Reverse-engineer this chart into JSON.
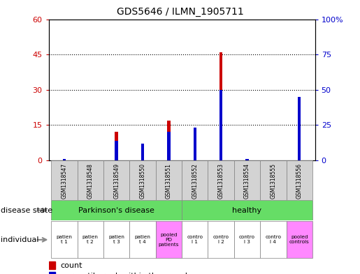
{
  "title": "GDS5646 / ILMN_1905711",
  "samples": [
    "GSM1318547",
    "GSM1318548",
    "GSM1318549",
    "GSM1318550",
    "GSM1318551",
    "GSM1318552",
    "GSM1318553",
    "GSM1318554",
    "GSM1318555",
    "GSM1318556"
  ],
  "count_values": [
    0,
    0,
    12,
    4,
    17,
    14,
    46,
    0,
    0,
    26
  ],
  "percentile_values": [
    1,
    0,
    14,
    12,
    20,
    23,
    50,
    1,
    0,
    45
  ],
  "left_ylim": [
    0,
    60
  ],
  "right_ylim": [
    0,
    100
  ],
  "left_yticks": [
    0,
    15,
    30,
    45,
    60
  ],
  "right_yticks": [
    0,
    25,
    50,
    75,
    100
  ],
  "right_yticklabels": [
    "0",
    "25",
    "50",
    "75",
    "100%"
  ],
  "bar_width": 0.12,
  "count_color": "#cc0000",
  "percentile_color": "#0000cc",
  "bg_color": "#ffffff",
  "plot_bg_color": "#ffffff",
  "grid_color": "#000000",
  "axis_label_color_left": "#cc0000",
  "axis_label_color_right": "#0000cc",
  "sample_bg_color": "#d3d3d3",
  "disease_green": "#66dd66",
  "individual_white": "#ffffff",
  "individual_pink": "#ff88ff",
  "individual_labels": [
    "patien\nt 1",
    "patien\nt 2",
    "patien\nt 3",
    "patien\nt 4",
    "pooled\nPD\npatients",
    "contro\nl 1",
    "contro\nl 2",
    "contro\nl 3",
    "contro\nl 4",
    "pooled\ncontrols"
  ],
  "individual_colors": [
    "#ffffff",
    "#ffffff",
    "#ffffff",
    "#ffffff",
    "#ff88ff",
    "#ffffff",
    "#ffffff",
    "#ffffff",
    "#ffffff",
    "#ff88ff"
  ]
}
